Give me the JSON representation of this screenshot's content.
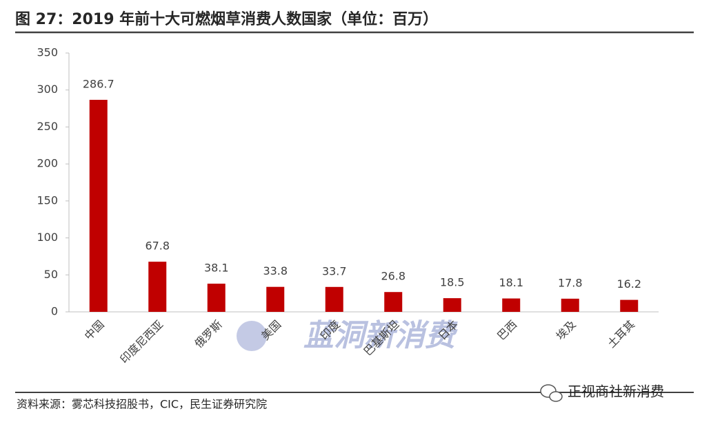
{
  "chart_data": {
    "type": "bar",
    "title": "图 27：2019 年前十大可燃烟草消费人数国家（单位：百万）",
    "categories": [
      "中国",
      "印度尼西亚",
      "俄罗斯",
      "美国",
      "印度",
      "巴基斯坦",
      "日本",
      "巴西",
      "埃及",
      "土耳其"
    ],
    "values": [
      286.7,
      67.8,
      38.1,
      33.8,
      33.7,
      26.8,
      18.5,
      18.1,
      17.8,
      16.2
    ],
    "color": "#c00000",
    "ylim": [
      0,
      350
    ],
    "yticks": [
      0,
      50,
      100,
      150,
      200,
      250,
      300,
      350
    ],
    "grid": false,
    "source": "资料来源：雾芯科技招股书，CIC，民生证券研究院"
  },
  "watermarks": [
    "蓝洞新消费",
    "正视商社新消费"
  ]
}
